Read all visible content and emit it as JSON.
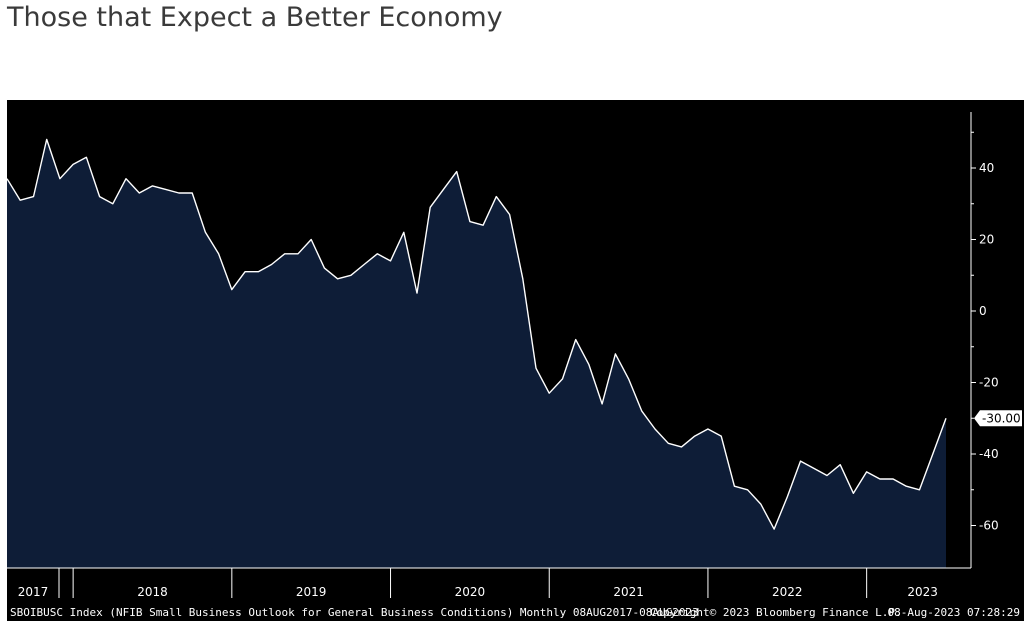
{
  "title": "Those that Expect a Better Economy",
  "chart_data": {
    "type": "area",
    "title": "Those that Expect a Better Economy",
    "series": [
      {
        "values": [
          37,
          31,
          32,
          48,
          37,
          41,
          43,
          32,
          30,
          37,
          33,
          35,
          34,
          33,
          33,
          22,
          16,
          6,
          11,
          11,
          13,
          16,
          16,
          20,
          12,
          9,
          10,
          13,
          16,
          14,
          22,
          5,
          29,
          34,
          39,
          25,
          24,
          32,
          27,
          9,
          -16,
          -23,
          -19,
          -8,
          -15,
          -26,
          -12,
          -19,
          -28,
          -33,
          -37,
          -38,
          -35,
          -33,
          -35,
          -49,
          -50,
          -54,
          -61,
          -52,
          -42,
          -44,
          -46,
          -43,
          -51,
          -45,
          -47,
          -47,
          -49,
          -50,
          -40,
          -30
        ]
      }
    ],
    "x_labels": [
      "2017",
      "2018",
      "2019",
      "2020",
      "2021",
      "2022",
      "2023"
    ],
    "ylim": [
      -70,
      52
    ],
    "yticks": [
      40,
      20,
      0,
      -20,
      -40,
      -60
    ],
    "ytick_labels": [
      "40",
      "20",
      "0",
      "-20",
      "-40",
      "-60"
    ],
    "last_value_label": "-30.00",
    "fill_color": "#0e1d37",
    "line_color": "#ffffff",
    "background_color": "#000000",
    "grid": false,
    "legend": "none"
  },
  "footer": {
    "description": "SBOIBUSC Index (NFIB Small Business Outlook for General Business Conditions) Monthly 08AUG2017-08AUG2023",
    "copyright": "Copyright© 2023 Bloomberg Finance L.P.",
    "timestamp": "08-Aug-2023 07:28:29"
  }
}
